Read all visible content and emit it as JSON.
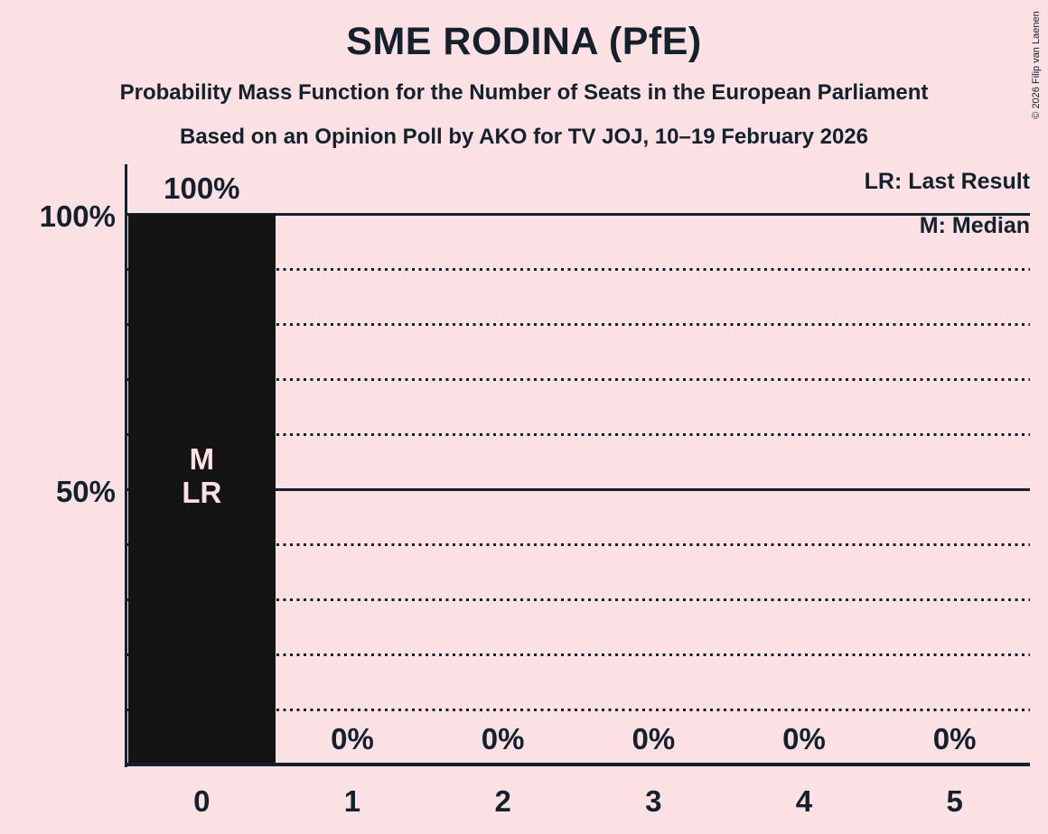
{
  "page": {
    "background_color": "#fce1e4",
    "ink_color": "#14212d",
    "bar_color": "#141414"
  },
  "header": {
    "title": "SME RODINA (PfE)",
    "subtitle1": "Probability Mass Function for the Number of Seats in the European Parliament",
    "subtitle2": "Based on an Opinion Poll by AKO for TV JOJ, 10–19 February 2026"
  },
  "legend": {
    "lr": "LR: Last Result",
    "m": "M: Median"
  },
  "copyright": "© 2026 Filip van Laenen",
  "chart_data": {
    "type": "bar",
    "title": "SME RODINA (PfE)",
    "xlabel": "",
    "ylabel": "",
    "categories": [
      "0",
      "1",
      "2",
      "3",
      "4",
      "5"
    ],
    "values": [
      100,
      0,
      0,
      0,
      0,
      0
    ],
    "value_labels": [
      "100%",
      "0%",
      "0%",
      "0%",
      "0%",
      "0%"
    ],
    "ylim": [
      0,
      100
    ],
    "yticks": [
      {
        "value": 100,
        "label": "100%"
      },
      {
        "value": 50,
        "label": "50%"
      }
    ],
    "gridlines": {
      "solid_at": [
        100,
        50
      ],
      "dotted_at": [
        90,
        80,
        70,
        60,
        40,
        30,
        20,
        10
      ]
    },
    "legend_position": "top-right",
    "bar_annotations": [
      {
        "category": "0",
        "labels": [
          "M",
          "LR"
        ]
      }
    ],
    "annotation_key": {
      "LR": "Last Result",
      "M": "Median"
    }
  }
}
